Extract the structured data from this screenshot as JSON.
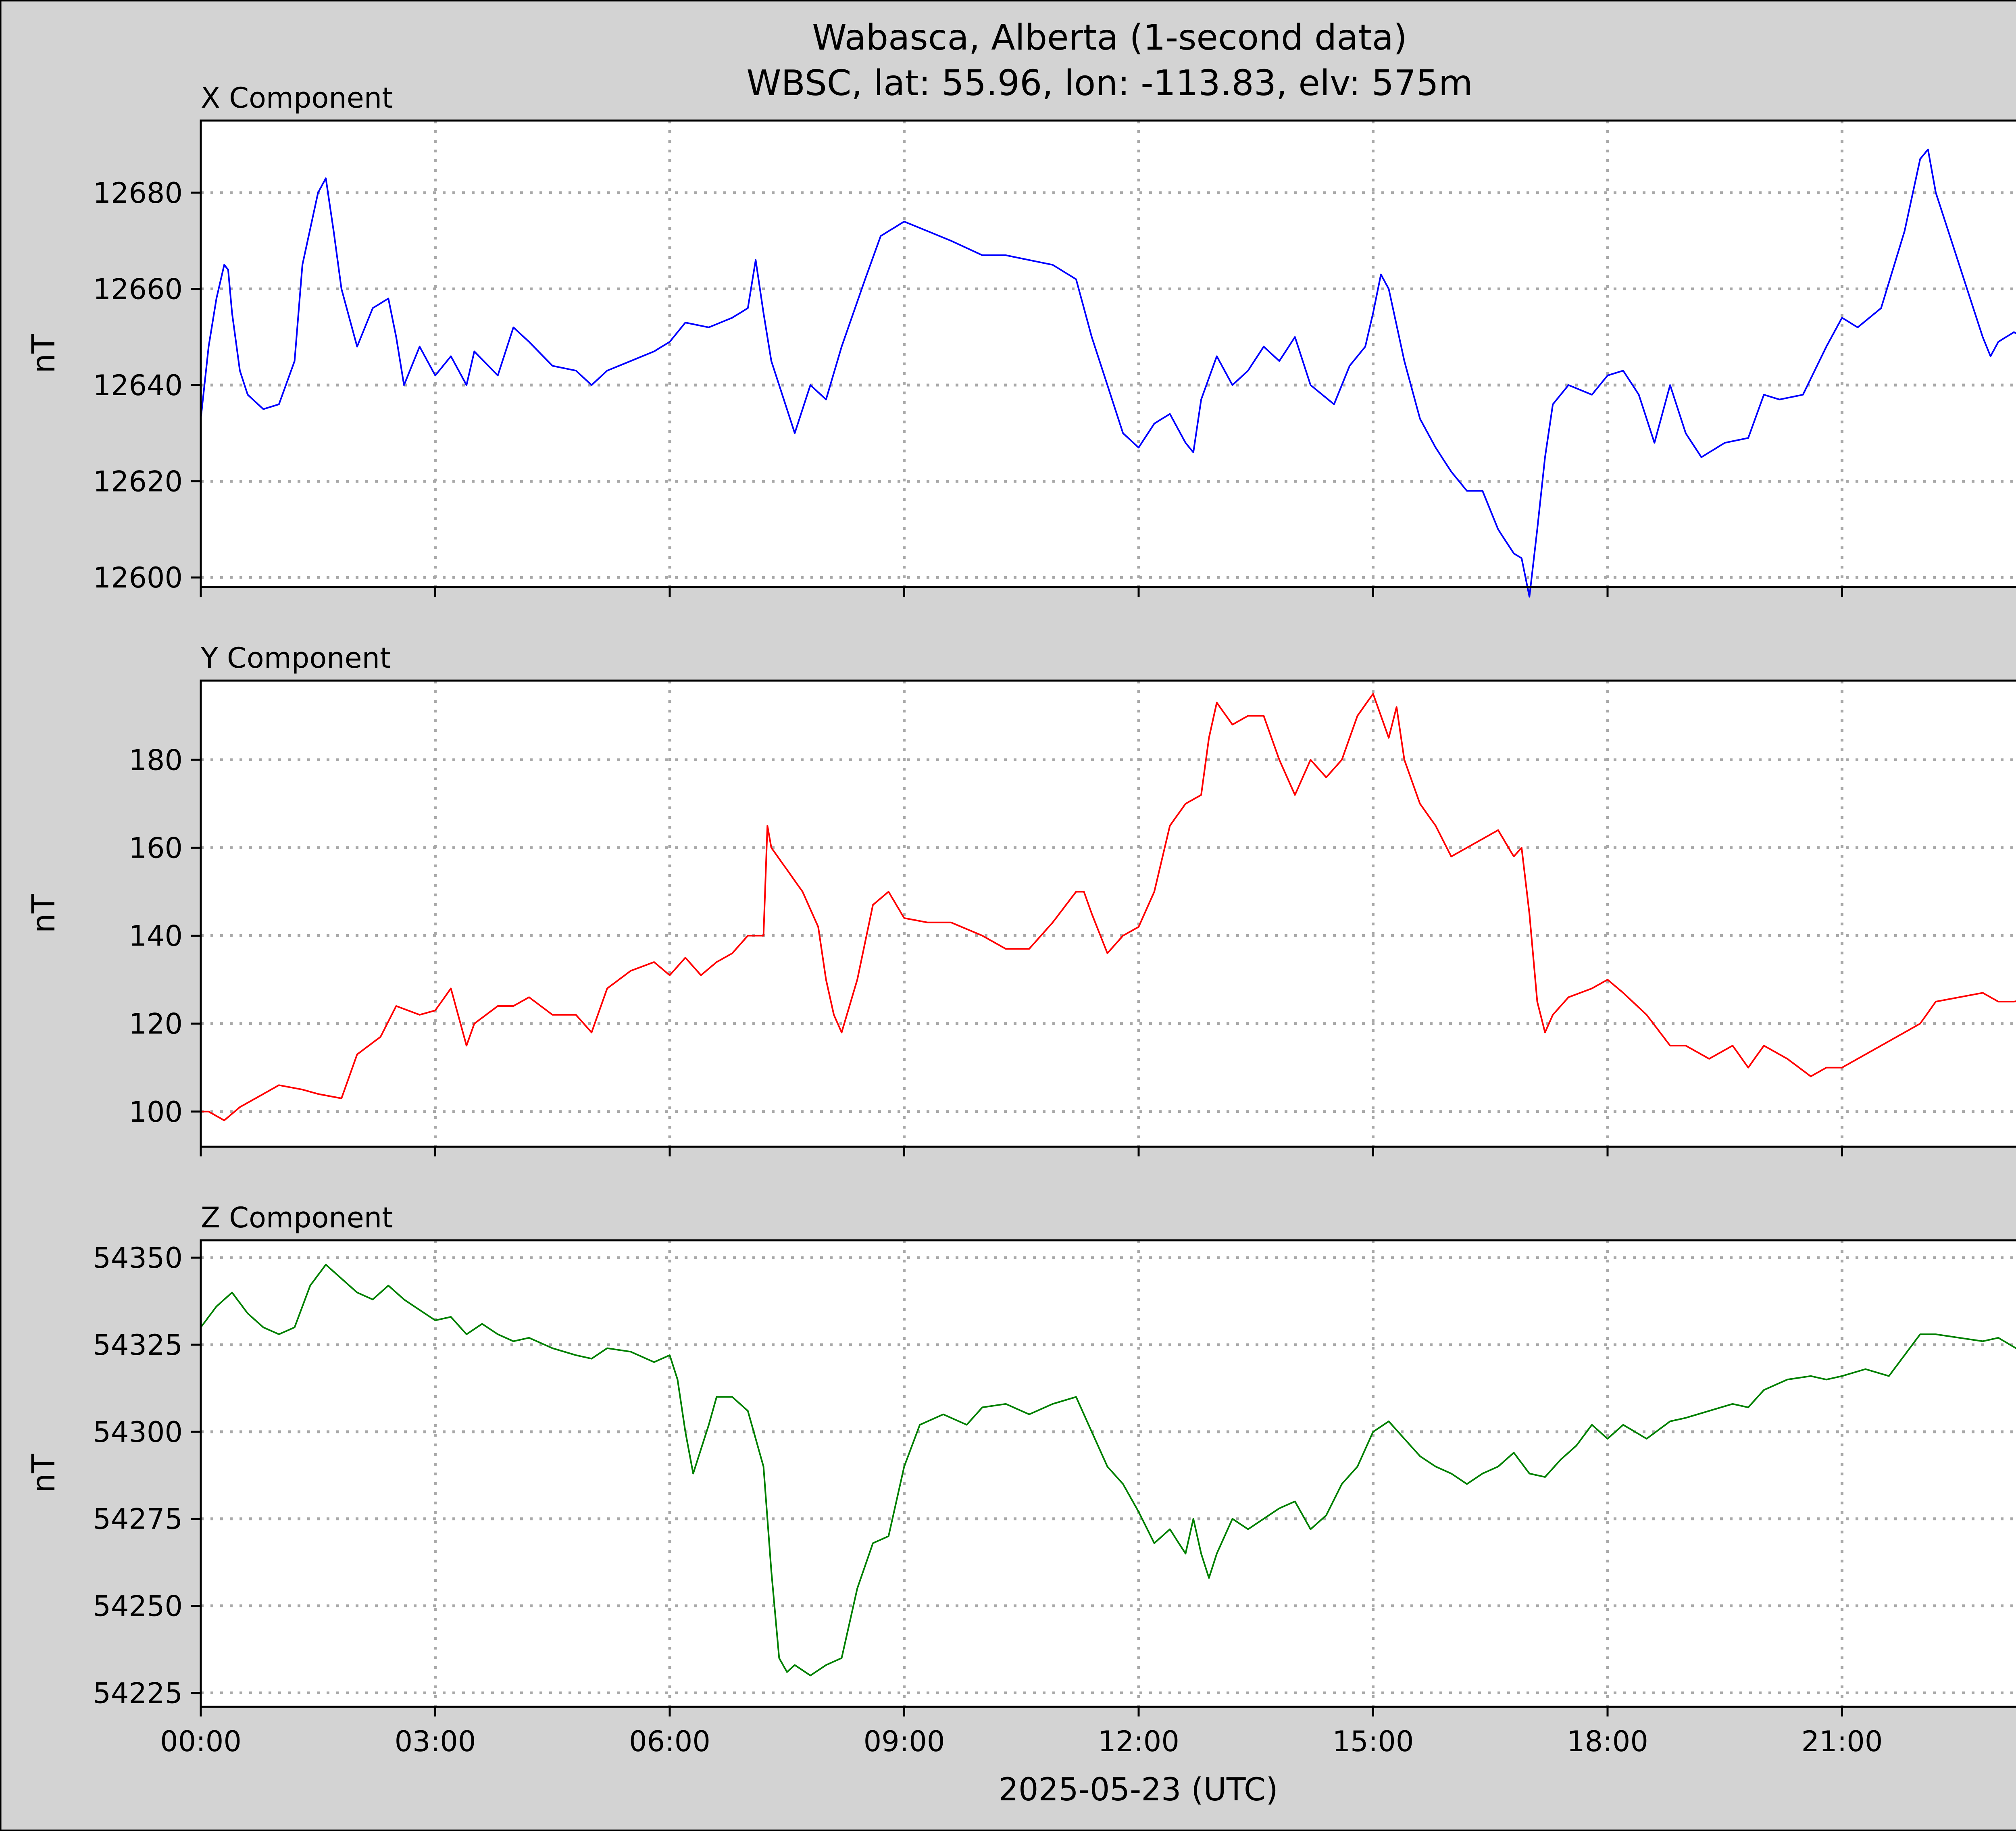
{
  "figure": {
    "title_line1": "Wabasca, Alberta (1-second data)",
    "title_line2": "WBSC, lat: 55.96, lon: -113.83, elv: 575m",
    "xlabel": "2025-05-23 (UTC)",
    "background": "#d3d3d3"
  },
  "chart_data": [
    {
      "type": "line",
      "title": "X Component",
      "ylabel": "nT",
      "color": "#0000ff",
      "grid": true,
      "xlim": [
        0,
        24
      ],
      "ylim": [
        12598,
        12695
      ],
      "yticks": [
        12600,
        12620,
        12640,
        12660,
        12680
      ],
      "x_ticks": [
        "00:00",
        "03:00",
        "06:00",
        "09:00",
        "12:00",
        "15:00",
        "18:00",
        "21:00"
      ],
      "x": [
        0.0,
        0.1,
        0.2,
        0.3,
        0.35,
        0.4,
        0.5,
        0.6,
        0.8,
        1.0,
        1.2,
        1.3,
        1.5,
        1.6,
        1.7,
        1.8,
        2.0,
        2.2,
        2.4,
        2.5,
        2.6,
        2.8,
        2.9,
        3.0,
        3.2,
        3.4,
        3.5,
        3.8,
        4.0,
        4.2,
        4.5,
        4.8,
        5.0,
        5.2,
        5.5,
        5.8,
        6.0,
        6.2,
        6.5,
        6.8,
        7.0,
        7.1,
        7.2,
        7.3,
        7.5,
        7.6,
        7.8,
        8.0,
        8.2,
        8.5,
        8.7,
        9.0,
        9.3,
        9.6,
        10.0,
        10.3,
        10.6,
        10.9,
        11.2,
        11.4,
        11.5,
        11.6,
        11.8,
        12.0,
        12.2,
        12.4,
        12.6,
        12.7,
        12.8,
        13.0,
        13.2,
        13.4,
        13.6,
        13.8,
        14.0,
        14.2,
        14.5,
        14.7,
        14.9,
        15.0,
        15.1,
        15.2,
        15.4,
        15.6,
        15.8,
        16.0,
        16.2,
        16.4,
        16.6,
        16.8,
        16.9,
        17.0,
        17.1,
        17.2,
        17.3,
        17.5,
        17.8,
        18.0,
        18.2,
        18.4,
        18.6,
        18.8,
        19.0,
        19.2,
        19.5,
        19.8,
        20.0,
        20.2,
        20.5,
        20.8,
        21.0,
        21.2,
        21.5,
        21.8,
        22.0,
        22.1,
        22.2,
        22.4,
        22.6,
        22.8,
        22.9,
        23.0,
        23.2,
        23.5,
        23.8,
        24.0
      ],
      "values": [
        12633,
        12648,
        12658,
        12665,
        12664,
        12655,
        12643,
        12638,
        12635,
        12636,
        12645,
        12665,
        12680,
        12683,
        12672,
        12660,
        12648,
        12656,
        12658,
        12650,
        12640,
        12648,
        12645,
        12642,
        12646,
        12640,
        12647,
        12642,
        12652,
        12649,
        12644,
        12643,
        12640,
        12643,
        12645,
        12647,
        12649,
        12653,
        12652,
        12654,
        12656,
        12666,
        12655,
        12645,
        12635,
        12630,
        12640,
        12637,
        12648,
        12662,
        12671,
        12674,
        12672,
        12670,
        12667,
        12667,
        12666,
        12665,
        12662,
        12650,
        12645,
        12640,
        12630,
        12627,
        12632,
        12634,
        12628,
        12626,
        12637,
        12646,
        12640,
        12643,
        12648,
        12645,
        12650,
        12640,
        12636,
        12644,
        12648,
        12655,
        12663,
        12660,
        12645,
        12633,
        12627,
        12622,
        12618,
        12618,
        12610,
        12605,
        12604,
        12596,
        12610,
        12625,
        12636,
        12640,
        12638,
        12642,
        12643,
        12638,
        12628,
        12640,
        12630,
        12625,
        12628,
        12629,
        12638,
        12637,
        12638,
        12648,
        12654,
        12652,
        12656,
        12672,
        12687,
        12689,
        12680,
        12670,
        12660,
        12650,
        12646,
        12649,
        12651,
        12648,
        12652,
        12655
      ],
      "lw": 1
    },
    {
      "type": "line",
      "title": "Y Component",
      "ylabel": "nT",
      "color": "#ff0000",
      "grid": true,
      "xlim": [
        0,
        24
      ],
      "ylim": [
        92,
        198
      ],
      "yticks": [
        100,
        120,
        140,
        160,
        180
      ],
      "x_ticks": [
        "00:00",
        "03:00",
        "06:00",
        "09:00",
        "12:00",
        "15:00",
        "18:00",
        "21:00"
      ],
      "x": [
        0.0,
        0.1,
        0.3,
        0.5,
        0.8,
        1.0,
        1.3,
        1.5,
        1.8,
        2.0,
        2.3,
        2.5,
        2.8,
        3.0,
        3.2,
        3.4,
        3.5,
        3.8,
        4.0,
        4.2,
        4.5,
        4.8,
        5.0,
        5.2,
        5.5,
        5.8,
        6.0,
        6.2,
        6.4,
        6.6,
        6.8,
        7.0,
        7.2,
        7.25,
        7.3,
        7.5,
        7.7,
        7.9,
        8.0,
        8.1,
        8.2,
        8.4,
        8.6,
        8.8,
        9.0,
        9.3,
        9.6,
        10.0,
        10.3,
        10.6,
        10.9,
        11.2,
        11.3,
        11.4,
        11.6,
        11.8,
        12.0,
        12.2,
        12.4,
        12.6,
        12.8,
        12.9,
        13.0,
        13.2,
        13.4,
        13.6,
        13.8,
        14.0,
        14.2,
        14.4,
        14.6,
        14.8,
        15.0,
        15.2,
        15.3,
        15.4,
        15.6,
        15.8,
        16.0,
        16.2,
        16.4,
        16.6,
        16.8,
        16.9,
        17.0,
        17.1,
        17.2,
        17.3,
        17.5,
        17.8,
        18.0,
        18.2,
        18.5,
        18.8,
        19.0,
        19.3,
        19.6,
        19.8,
        20.0,
        20.3,
        20.6,
        20.8,
        21.0,
        21.2,
        21.5,
        21.8,
        22.0,
        22.2,
        22.5,
        22.8,
        23.0,
        23.2,
        23.5,
        23.8,
        24.0
      ],
      "values": [
        100,
        100,
        98,
        101,
        104,
        106,
        105,
        104,
        103,
        113,
        117,
        124,
        122,
        123,
        128,
        115,
        120,
        124,
        124,
        126,
        122,
        122,
        118,
        128,
        132,
        134,
        131,
        135,
        131,
        134,
        136,
        140,
        140,
        165,
        160,
        155,
        150,
        142,
        130,
        122,
        118,
        130,
        147,
        150,
        144,
        143,
        143,
        140,
        137,
        137,
        143,
        150,
        150,
        145,
        136,
        140,
        142,
        150,
        165,
        170,
        172,
        185,
        193,
        188,
        190,
        190,
        180,
        172,
        180,
        176,
        180,
        190,
        195,
        185,
        192,
        180,
        170,
        165,
        158,
        160,
        162,
        164,
        158,
        160,
        145,
        125,
        118,
        122,
        126,
        128,
        130,
        127,
        122,
        115,
        115,
        112,
        115,
        110,
        115,
        112,
        108,
        110,
        110,
        112,
        115,
        118,
        120,
        125,
        126,
        127,
        125,
        125,
        126,
        125,
        125
      ],
      "lw": 1
    },
    {
      "type": "line",
      "title": "Z Component",
      "ylabel": "nT",
      "color": "#008000",
      "grid": true,
      "xlim": [
        0,
        24
      ],
      "ylim": [
        54221,
        54355
      ],
      "yticks": [
        54225,
        54250,
        54275,
        54300,
        54325,
        54350
      ],
      "x_ticks": [
        "00:00",
        "03:00",
        "06:00",
        "09:00",
        "12:00",
        "15:00",
        "18:00",
        "21:00"
      ],
      "x": [
        0.0,
        0.2,
        0.4,
        0.6,
        0.8,
        1.0,
        1.2,
        1.4,
        1.6,
        1.8,
        2.0,
        2.2,
        2.4,
        2.6,
        2.8,
        3.0,
        3.2,
        3.4,
        3.6,
        3.8,
        4.0,
        4.2,
        4.5,
        4.8,
        5.0,
        5.2,
        5.5,
        5.8,
        6.0,
        6.1,
        6.2,
        6.3,
        6.4,
        6.5,
        6.6,
        6.8,
        7.0,
        7.2,
        7.3,
        7.4,
        7.5,
        7.6,
        7.8,
        8.0,
        8.2,
        8.4,
        8.6,
        8.8,
        9.0,
        9.2,
        9.5,
        9.8,
        10.0,
        10.3,
        10.6,
        10.9,
        11.2,
        11.4,
        11.6,
        11.8,
        12.0,
        12.2,
        12.4,
        12.6,
        12.7,
        12.8,
        12.9,
        13.0,
        13.2,
        13.4,
        13.6,
        13.8,
        14.0,
        14.2,
        14.4,
        14.6,
        14.8,
        15.0,
        15.2,
        15.4,
        15.6,
        15.8,
        16.0,
        16.2,
        16.4,
        16.6,
        16.8,
        17.0,
        17.2,
        17.4,
        17.6,
        17.8,
        18.0,
        18.2,
        18.5,
        18.8,
        19.0,
        19.3,
        19.6,
        19.8,
        20.0,
        20.3,
        20.6,
        20.8,
        21.0,
        21.3,
        21.6,
        21.8,
        22.0,
        22.2,
        22.5,
        22.8,
        23.0,
        23.3,
        23.6,
        23.8,
        24.0
      ],
      "values": [
        54330,
        54336,
        54340,
        54334,
        54330,
        54328,
        54330,
        54342,
        54348,
        54344,
        54340,
        54338,
        54342,
        54338,
        54335,
        54332,
        54333,
        54328,
        54331,
        54328,
        54326,
        54327,
        54324,
        54322,
        54321,
        54324,
        54323,
        54320,
        54322,
        54315,
        54300,
        54288,
        54295,
        54302,
        54310,
        54310,
        54306,
        54290,
        54260,
        54235,
        54231,
        54233,
        54230,
        54233,
        54235,
        54255,
        54268,
        54270,
        54290,
        54302,
        54305,
        54302,
        54307,
        54308,
        54305,
        54308,
        54310,
        54300,
        54290,
        54285,
        54277,
        54268,
        54272,
        54265,
        54275,
        54265,
        54258,
        54265,
        54275,
        54272,
        54275,
        54278,
        54280,
        54272,
        54276,
        54285,
        54290,
        54300,
        54303,
        54298,
        54293,
        54290,
        54288,
        54285,
        54288,
        54290,
        54294,
        54288,
        54287,
        54292,
        54296,
        54302,
        54298,
        54302,
        54298,
        54303,
        54304,
        54306,
        54308,
        54307,
        54312,
        54315,
        54316,
        54315,
        54316,
        54318,
        54316,
        54322,
        54328,
        54328,
        54327,
        54326,
        54327,
        54323,
        54325,
        54325,
        54329
      ],
      "lw": 1
    }
  ]
}
